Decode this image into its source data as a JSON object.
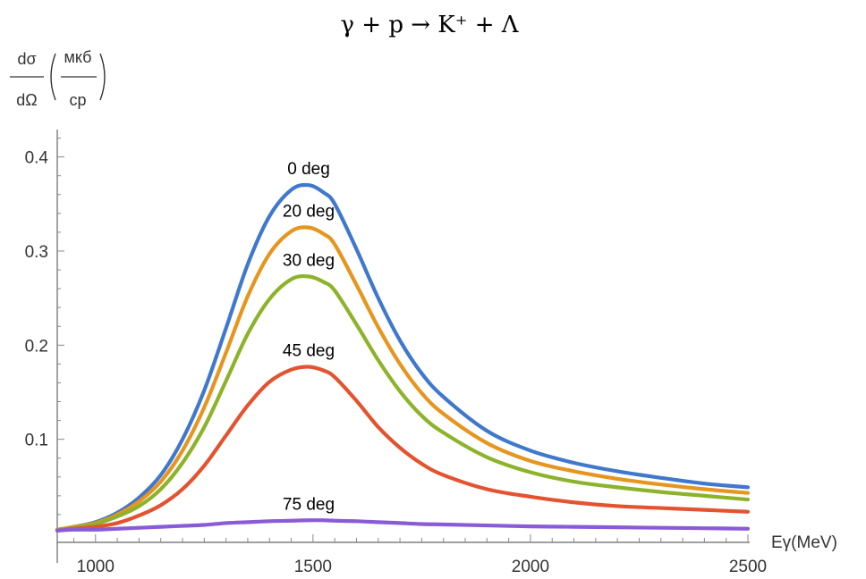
{
  "chart_data": {
    "type": "line",
    "title": "γ + p → K⁺ + Λ",
    "ylabel_num": "dσ",
    "ylabel_den": "dΩ",
    "yunit_num": "мкб",
    "yunit_den": "ср",
    "xlabel": "Eγ(MeV)",
    "xlim": [
      912,
      2500
    ],
    "ylim": [
      0,
      0.43
    ],
    "xticks": [
      1000,
      1500,
      2000,
      2500
    ],
    "xtick_labels": [
      "1000",
      "1500",
      "2000",
      "2500"
    ],
    "yticks": [
      0.1,
      0.2,
      0.3,
      0.4
    ],
    "ytick_labels": [
      "0.1",
      "0.2",
      "0.3",
      "0.4"
    ],
    "grid": false,
    "x": [
      912,
      950,
      1000,
      1050,
      1100,
      1150,
      1200,
      1250,
      1300,
      1350,
      1400,
      1450,
      1490,
      1525,
      1550,
      1600,
      1650,
      1700,
      1750,
      1800,
      1900,
      2000,
      2100,
      2200,
      2300,
      2400,
      2500
    ],
    "series": [
      {
        "name": "0 deg",
        "color": "#3f78cc",
        "values": [
          0.004,
          0.007,
          0.012,
          0.022,
          0.038,
          0.062,
          0.1,
          0.152,
          0.218,
          0.286,
          0.337,
          0.365,
          0.37,
          0.362,
          0.35,
          0.302,
          0.25,
          0.205,
          0.17,
          0.145,
          0.109,
          0.088,
          0.075,
          0.066,
          0.059,
          0.053,
          0.049
        ]
      },
      {
        "name": "20 deg",
        "color": "#e6951e",
        "values": [
          0.004,
          0.007,
          0.011,
          0.02,
          0.034,
          0.055,
          0.088,
          0.134,
          0.192,
          0.252,
          0.297,
          0.321,
          0.325,
          0.318,
          0.307,
          0.264,
          0.219,
          0.18,
          0.149,
          0.127,
          0.096,
          0.077,
          0.066,
          0.058,
          0.052,
          0.047,
          0.043
        ]
      },
      {
        "name": "30 deg",
        "color": "#8cb32a",
        "values": [
          0.004,
          0.006,
          0.01,
          0.018,
          0.029,
          0.047,
          0.075,
          0.113,
          0.162,
          0.212,
          0.249,
          0.27,
          0.273,
          0.267,
          0.258,
          0.222,
          0.184,
          0.151,
          0.125,
          0.107,
          0.081,
          0.065,
          0.055,
          0.049,
          0.044,
          0.04,
          0.036
        ]
      },
      {
        "name": "45 deg",
        "color": "#e35330",
        "values": [
          0.003,
          0.005,
          0.007,
          0.011,
          0.019,
          0.03,
          0.047,
          0.072,
          0.104,
          0.136,
          0.161,
          0.174,
          0.177,
          0.173,
          0.166,
          0.141,
          0.113,
          0.091,
          0.074,
          0.062,
          0.047,
          0.039,
          0.033,
          0.029,
          0.027,
          0.025,
          0.023
        ]
      },
      {
        "name": "75 deg",
        "color": "#8a5bd6",
        "values": [
          0.003,
          0.004,
          0.004,
          0.005,
          0.006,
          0.007,
          0.008,
          0.009,
          0.011,
          0.012,
          0.013,
          0.0135,
          0.014,
          0.014,
          0.0135,
          0.013,
          0.012,
          0.011,
          0.01,
          0.0095,
          0.0085,
          0.0075,
          0.007,
          0.0065,
          0.006,
          0.0055,
          0.005
        ]
      }
    ]
  }
}
